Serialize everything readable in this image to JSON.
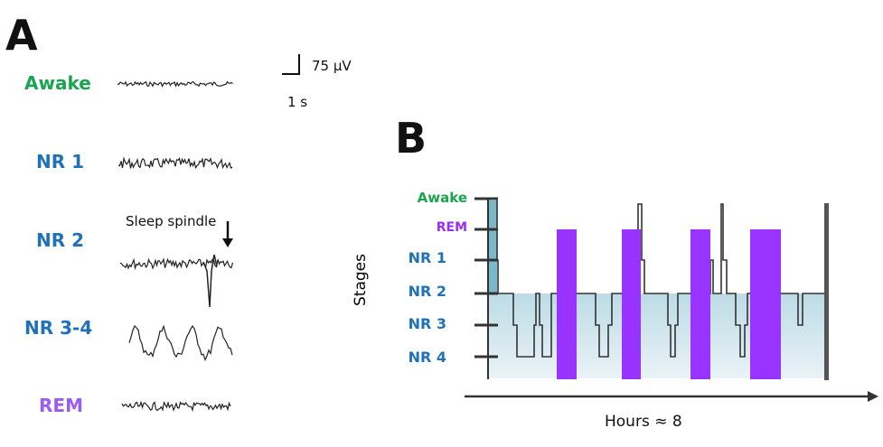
{
  "panel_a": {
    "label": "A",
    "stages": [
      {
        "name": "Awake",
        "color": "#1aa44f"
      },
      {
        "name": "NR 1",
        "color": "#1f72b8"
      },
      {
        "name": "NR 2",
        "color": "#1f72b8"
      },
      {
        "name": "NR 3-4",
        "color": "#1f72b8"
      },
      {
        "name": "REM",
        "color": "#9b5cf0"
      }
    ],
    "scale_voltage": "75 µV",
    "scale_time": "1 s",
    "annotation": "Sleep spindle"
  },
  "panel_b": {
    "label": "B",
    "y_title": "Stages",
    "x_title": "Hours ≈ 8",
    "levels": [
      {
        "name": "Awake",
        "color": "#1aa44f"
      },
      {
        "name": "REM",
        "color": "#9b2cf5"
      },
      {
        "name": "NR 1",
        "color": "#1f72b8"
      },
      {
        "name": "NR 2",
        "color": "#1f72b8"
      },
      {
        "name": "NR 3",
        "color": "#1f72b8"
      },
      {
        "name": "NR 4",
        "color": "#1f72b8"
      }
    ],
    "rem_color": "#9933ff"
  }
}
